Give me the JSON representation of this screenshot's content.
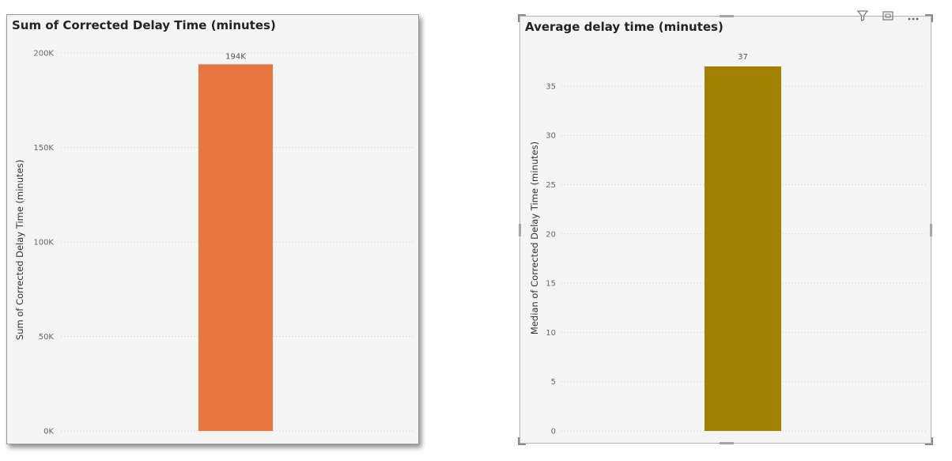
{
  "visuals": [
    {
      "title": "Sum of Corrected Delay Time (minutes)",
      "chart_data": {
        "type": "bar",
        "categories": [
          ""
        ],
        "values": [
          194000
        ],
        "data_labels": [
          "194K"
        ],
        "title": "Sum of Corrected Delay Time (minutes)",
        "xlabel": "",
        "ylabel": "Sum of Corrected Delay Time (minutes)",
        "ylim": [
          0,
          200000
        ],
        "yticks": [
          0,
          50000,
          100000,
          150000,
          200000
        ],
        "ytick_labels": [
          "0K",
          "50K",
          "100K",
          "150K",
          "200K"
        ],
        "grid": true,
        "bar_color": "#e8743f"
      }
    },
    {
      "title": "Average delay time (minutes)",
      "chart_data": {
        "type": "bar",
        "categories": [
          ""
        ],
        "values": [
          37
        ],
        "data_labels": [
          "37"
        ],
        "title": "Average delay time (minutes)",
        "xlabel": "",
        "ylabel": "Median of Corrected Delay Time (minutes)",
        "ylim": [
          0,
          37
        ],
        "yticks": [
          0,
          5,
          10,
          15,
          20,
          25,
          30,
          35
        ],
        "ytick_labels": [
          "0",
          "5",
          "10",
          "15",
          "20",
          "25",
          "30",
          "35"
        ],
        "grid": true,
        "bar_color": "#a38100"
      }
    }
  ],
  "toolbar": {
    "icons": [
      "filter-icon",
      "focus-mode-icon",
      "more-options-icon"
    ]
  }
}
